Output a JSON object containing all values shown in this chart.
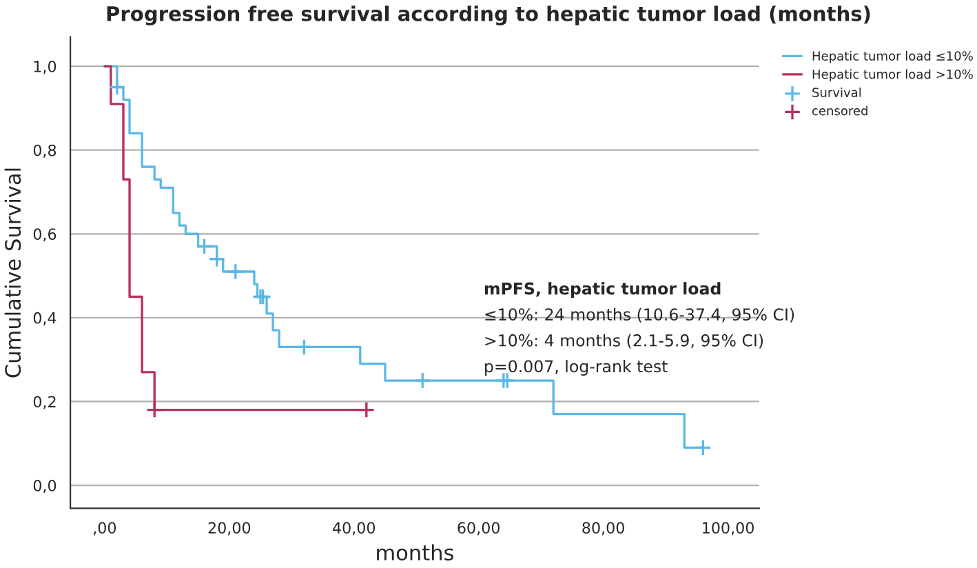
{
  "chart_data": {
    "type": "step",
    "title": "Progression free survival according to hepatic tumor load (months)",
    "xlabel": "months",
    "ylabel": "Cumulative Survival",
    "series": [
      {
        "name": "Hepatic tumor load ≤10%",
        "color": "#5bb8e6",
        "marker": "none",
        "x": [
          0,
          2,
          3,
          4,
          6,
          8,
          9,
          11,
          12,
          13,
          15,
          18,
          19,
          24,
          24.5,
          26,
          27,
          28,
          41,
          45,
          72,
          93,
          96
        ],
        "values": [
          1,
          0.95,
          0.92,
          0.84,
          0.76,
          0.73,
          0.71,
          0.65,
          0.62,
          0.6,
          0.57,
          0.54,
          0.51,
          0.48,
          0.45,
          0.41,
          0.37,
          0.33,
          0.29,
          0.25,
          0.17,
          0.09,
          0.09
        ]
      },
      {
        "name": "Hepatic tumor load >10%",
        "color": "#b5305f",
        "marker": "none",
        "x": [
          0,
          1,
          3,
          4,
          6,
          8,
          42
        ],
        "values": [
          1,
          0.91,
          0.73,
          0.45,
          0.27,
          0.18,
          0.18
        ]
      },
      {
        "name": "Survival",
        "color": "#5bb8e6",
        "type": "scatter",
        "marker": "cross",
        "x": [
          2,
          16,
          18,
          21,
          25,
          25.4,
          32,
          51,
          64,
          64.6,
          96
        ],
        "values": [
          0.95,
          0.57,
          0.54,
          0.51,
          0.45,
          0.45,
          0.33,
          0.25,
          0.25,
          0.25,
          0.09
        ]
      },
      {
        "name": "censored",
        "color": "#b5305f",
        "type": "scatter",
        "marker": "cross",
        "x": [
          8,
          42
        ],
        "values": [
          0.18,
          0.18
        ]
      }
    ],
    "xlim": [
      -5.5,
      105
    ],
    "ylim": [
      -0.055,
      1.07
    ],
    "xticks": [
      {
        "value": 0,
        "label": ",00"
      },
      {
        "value": 20,
        "label": "20,00"
      },
      {
        "value": 40,
        "label": "40,00"
      },
      {
        "value": 60,
        "label": "60,00"
      },
      {
        "value": 80,
        "label": "80,00"
      },
      {
        "value": 100,
        "label": "100,00"
      }
    ],
    "yticks": [
      {
        "value": 0,
        "label": "0,0"
      },
      {
        "value": 0.2,
        "label": "0,2"
      },
      {
        "value": 0.4,
        "label": "0,4"
      },
      {
        "value": 0.6,
        "label": "0,6"
      },
      {
        "value": 0.8,
        "label": "0,8"
      },
      {
        "value": 1,
        "label": "1,0"
      }
    ],
    "grid": "y",
    "legend": "top right",
    "annotations": [
      "mPFS, hepatic tumor load",
      "≤10%: 24 months (10.6-37.4, 95% CI)",
      ">10%: 4 months (2.1-5.9, 95% CI)",
      "p=0.007, log-rank test"
    ]
  }
}
